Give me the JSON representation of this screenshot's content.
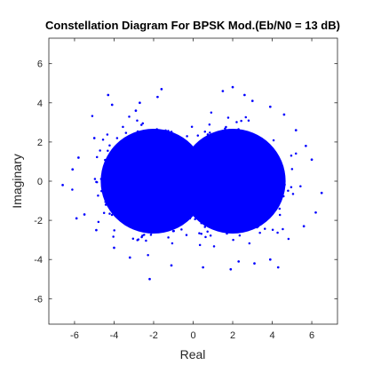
{
  "chart_data": {
    "type": "scatter",
    "title": "Constellation Diagram For BPSK Mod.(Eb/N0 = 13 dB)",
    "xlabel": "Real",
    "ylabel": "Imaginary",
    "xlim": [
      -7.3,
      7.3
    ],
    "ylim": [
      -7.3,
      7.3
    ],
    "xticks": [
      -6,
      -4,
      -2,
      0,
      2,
      4,
      6
    ],
    "yticks": [
      -6,
      -4,
      -2,
      0,
      2,
      4,
      6
    ],
    "grid": false,
    "legend": "none",
    "series": [
      {
        "color": "#0000ff",
        "clusters": [
          {
            "center": [
              -2,
              0
            ],
            "spread": 1.05
          },
          {
            "center": [
              2,
              0
            ],
            "spread": 1.05
          }
        ],
        "outliers": [
          [
            -6.6,
            -0.2
          ],
          [
            -5.8,
            1.2
          ],
          [
            -5.5,
            -1.7
          ],
          [
            -5.0,
            2.2
          ],
          [
            -4.9,
            -2.5
          ],
          [
            -4.1,
            3.9
          ],
          [
            -4.0,
            -3.4
          ],
          [
            -4.3,
            4.4
          ],
          [
            -2.2,
            -5.0
          ],
          [
            -2.7,
            4.0
          ],
          [
            -1.8,
            4.3
          ],
          [
            -1.6,
            4.7
          ],
          [
            -1.1,
            -4.3
          ],
          [
            -3.2,
            -3.9
          ],
          [
            -2.9,
            3.6
          ],
          [
            1.5,
            4.6
          ],
          [
            2.0,
            4.8
          ],
          [
            2.6,
            4.4
          ],
          [
            3.0,
            4.1
          ],
          [
            2.3,
            -4.1
          ],
          [
            3.1,
            -4.2
          ],
          [
            3.9,
            -4.0
          ],
          [
            4.3,
            -4.4
          ],
          [
            1.9,
            -4.5
          ],
          [
            4.6,
            3.4
          ],
          [
            5.2,
            2.6
          ],
          [
            5.6,
            -2.3
          ],
          [
            6.0,
            1.1
          ],
          [
            6.5,
            -0.6
          ],
          [
            6.2,
            -1.6
          ],
          [
            5.7,
            1.8
          ],
          [
            3.9,
            3.8
          ],
          [
            -5.9,
            -1.9
          ],
          [
            -6.1,
            0.6
          ],
          [
            0.5,
            -4.4
          ]
        ]
      }
    ]
  }
}
